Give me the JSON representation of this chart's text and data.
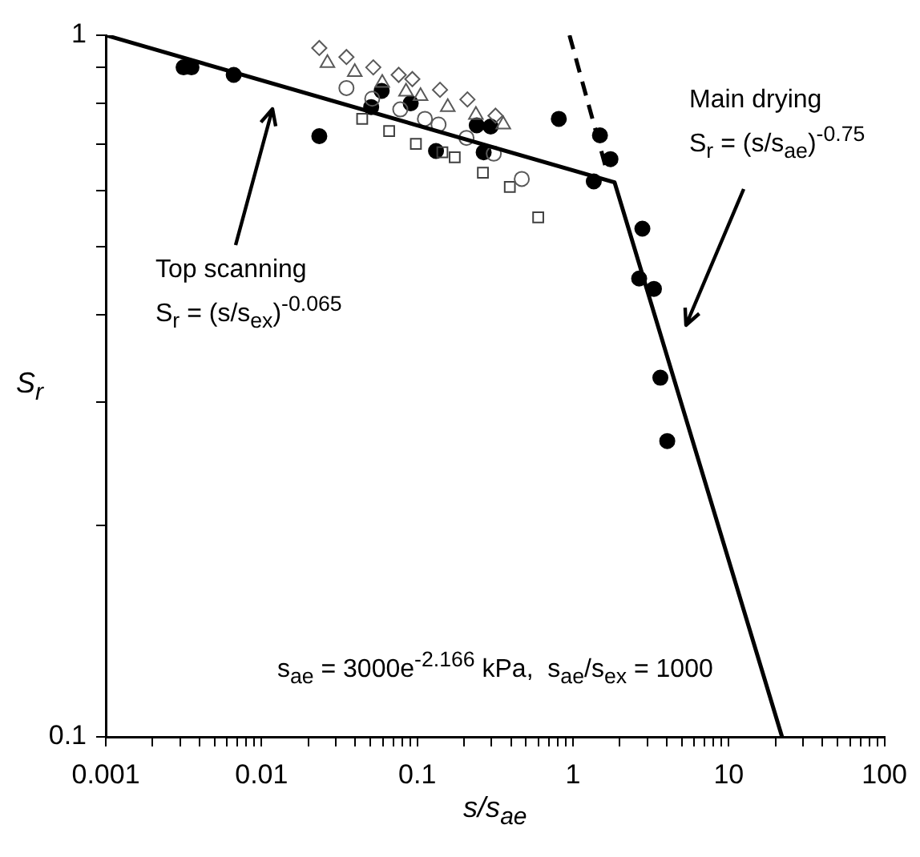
{
  "chart_data": {
    "type": "scatter",
    "xlabel": "s/s$_{ae}$",
    "ylabel": "S$_{r}$",
    "log": "xy",
    "grid": false,
    "xlim": [
      0.001,
      100
    ],
    "ylim": [
      0.1,
      1
    ],
    "xticks": [
      0.001,
      {
        "value": 0.002,
        "label": null
      },
      {
        "value": 0.003,
        "label": null
      },
      {
        "value": 0.004,
        "label": null
      },
      {
        "value": 0.005,
        "label": null
      },
      {
        "value": 0.006,
        "label": null
      },
      {
        "value": 0.007,
        "label": null
      },
      {
        "value": 0.008,
        "label": null
      },
      {
        "value": 0.009,
        "label": null
      },
      0.01,
      {
        "value": 0.02,
        "label": null
      },
      {
        "value": 0.03,
        "label": null
      },
      {
        "value": 0.04,
        "label": null
      },
      {
        "value": 0.05,
        "label": null
      },
      {
        "value": 0.06,
        "label": null
      },
      {
        "value": 0.07,
        "label": null
      },
      {
        "value": 0.08,
        "label": null
      },
      {
        "value": 0.09,
        "label": null
      },
      0.1,
      {
        "value": 0.2,
        "label": null
      },
      {
        "value": 0.3,
        "label": null
      },
      {
        "value": 0.4,
        "label": null
      },
      {
        "value": 0.5,
        "label": null
      },
      {
        "value": 0.6,
        "label": null
      },
      {
        "value": 0.7,
        "label": null
      },
      {
        "value": 0.8,
        "label": null
      },
      {
        "value": 0.9,
        "label": null
      },
      1,
      {
        "value": 2,
        "label": null
      },
      {
        "value": 3,
        "label": null
      },
      {
        "value": 4,
        "label": null
      },
      {
        "value": 5,
        "label": null
      },
      {
        "value": 6,
        "label": null
      },
      {
        "value": 7,
        "label": null
      },
      {
        "value": 8,
        "label": null
      },
      {
        "value": 9,
        "label": null
      },
      10,
      {
        "value": 20,
        "label": null
      },
      {
        "value": 30,
        "label": null
      },
      {
        "value": 40,
        "label": null
      },
      {
        "value": 50,
        "label": null
      },
      {
        "value": 60,
        "label": null
      },
      {
        "value": 70,
        "label": null
      },
      {
        "value": 80,
        "label": null
      },
      {
        "value": 90,
        "label": null
      },
      100
    ],
    "yticks": [
      0.1,
      {
        "value": 0.2,
        "label": null
      },
      {
        "value": 0.3,
        "label": null
      },
      {
        "value": 0.4,
        "label": null
      },
      {
        "value": 0.5,
        "label": null
      },
      {
        "value": 0.6,
        "label": null
      },
      {
        "value": 0.7,
        "label": null
      },
      {
        "value": 0.8,
        "label": null
      },
      {
        "value": 0.9,
        "label": null
      },
      1
    ],
    "series": [
      {
        "type": "line",
        "color": "#000000",
        "marker": "none",
        "line_style": "solid",
        "x": [
          0.001,
          1.85,
          22
        ],
        "values": [
          1,
          0.617,
          0.1
        ]
      },
      {
        "type": "line",
        "color": "#000000",
        "marker": "none",
        "line_style": "dashed",
        "x": [
          0.95,
          1.65
        ],
        "values": [
          1,
          0.64
        ]
      },
      {
        "type": "scatter",
        "color": "#595959",
        "marker": "diamond",
        "x": [
          0.0235,
          0.0351,
          0.0522,
          0.076,
          0.093,
          0.14,
          0.21,
          0.318
        ],
        "values": [
          0.959,
          0.931,
          0.9,
          0.878,
          0.866,
          0.836,
          0.81,
          0.768
        ]
      },
      {
        "type": "scatter",
        "color": "#595959",
        "marker": "triangle",
        "x": [
          0.0265,
          0.0397,
          0.0596,
          0.0847,
          0.105,
          0.157,
          0.238,
          0.357
        ],
        "values": [
          0.913,
          0.886,
          0.855,
          0.831,
          0.819,
          0.79,
          0.77,
          0.746
        ]
      },
      {
        "type": "scatter",
        "color": "#595959",
        "marker": "circle",
        "x": [
          0.0351,
          0.0514,
          0.0778,
          0.112,
          0.137,
          0.207,
          0.31,
          0.469
        ],
        "values": [
          0.841,
          0.812,
          0.784,
          0.76,
          0.746,
          0.714,
          0.678,
          0.624
        ]
      },
      {
        "type": "scatter",
        "color": "#404040",
        "marker": "square",
        "x": [
          0.0443,
          0.066,
          0.098,
          0.145,
          0.174,
          0.264,
          0.393,
          0.598
        ],
        "values": [
          0.76,
          0.73,
          0.7,
          0.681,
          0.67,
          0.637,
          0.608,
          0.55
        ]
      },
      {
        "type": "scatter",
        "color": "#000000",
        "marker": "circle",
        "x": [
          0.00316,
          0.00355,
          0.00663,
          0.0235,
          0.0591,
          0.0506,
          0.0908,
          0.132,
          0.241,
          0.296,
          0.267,
          0.811,
          1.49,
          1.74,
          1.36,
          2.79,
          2.66,
          3.31,
          3.64,
          4.03
        ],
        "values": [
          0.9,
          0.9,
          0.878,
          0.718,
          0.833,
          0.79,
          0.8,
          0.684,
          0.744,
          0.741,
          0.681,
          0.76,
          0.72,
          0.666,
          0.619,
          0.53,
          0.45,
          0.435,
          0.325,
          0.264
        ]
      }
    ],
    "annotations": [
      "Top scanning\nS$_{r}$ = (s/s$_{ex}$)$^{-0.065}$",
      "Main drying\nS$_{r}$ = (s/s$_{ae}$)$^{-0.75}$",
      "s$_{ae}$ = 3000e$^{-2.166}$ kPa,  s$_{ae}$/s$_{ex}$ = 1000"
    ]
  }
}
